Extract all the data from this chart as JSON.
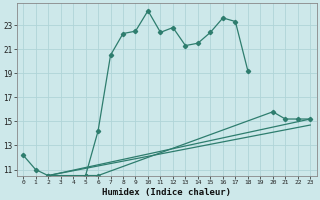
{
  "xlabel": "Humidex (Indice chaleur)",
  "bg_color": "#cde8ea",
  "grid_color": "#b0d4d8",
  "line_color": "#2e7d6e",
  "xlim": [
    -0.5,
    23.5
  ],
  "ylim": [
    10.5,
    24.8
  ],
  "yticks": [
    11,
    13,
    15,
    17,
    19,
    21,
    23
  ],
  "xticks": [
    0,
    1,
    2,
    3,
    4,
    5,
    6,
    7,
    8,
    9,
    10,
    11,
    12,
    13,
    14,
    15,
    16,
    17,
    18,
    19,
    20,
    21,
    22,
    23
  ],
  "curve1_x": [
    0,
    1,
    2,
    3,
    4,
    5,
    6,
    7,
    8,
    9,
    10,
    11,
    12,
    13,
    14,
    15,
    16,
    17,
    18
  ],
  "curve1_y": [
    12.2,
    11.0,
    10.5,
    10.0,
    10.2,
    10.5,
    14.2,
    20.5,
    22.3,
    22.5,
    24.2,
    22.4,
    22.8,
    21.3,
    21.5,
    22.4,
    23.6,
    23.3,
    19.2
  ],
  "curve2_x": [
    2,
    3,
    4,
    5,
    6
  ],
  "curve2_y": [
    10.5,
    10.0,
    10.2,
    10.5,
    10.5
  ],
  "curve3_x": [
    2,
    5,
    6,
    20,
    21,
    22,
    23
  ],
  "curve3_y": [
    10.5,
    10.5,
    10.5,
    15.8,
    15.2,
    15.2,
    15.2
  ],
  "line1_x": [
    2,
    23
  ],
  "line1_y": [
    10.5,
    15.2
  ],
  "line2_x": [
    2,
    23
  ],
  "line2_y": [
    10.5,
    14.7
  ]
}
